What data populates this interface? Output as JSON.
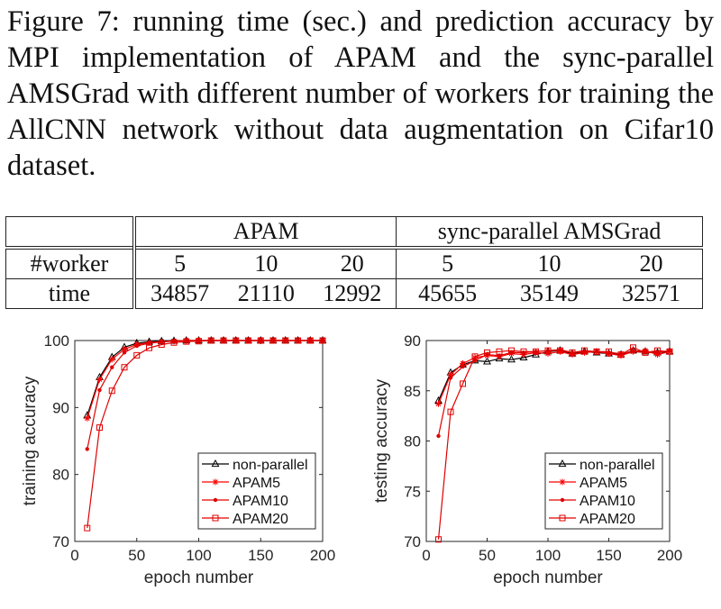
{
  "caption": "Figure 7: running time (sec.) and prediction accuracy by MPI implementation of APAM and the sync-parallel AMSGrad with different number of workers for training the AllCNN network without data augmentation on Cifar10 dataset.",
  "table": {
    "group_headers": [
      "APAM",
      "sync-parallel AMSGrad"
    ],
    "row_labels": [
      "#worker",
      "time"
    ],
    "workers": [
      "5",
      "10",
      "20",
      "5",
      "10",
      "20"
    ],
    "times": [
      "34857",
      "21110",
      "12992",
      "45655",
      "35149",
      "32571"
    ]
  },
  "chart_data": [
    {
      "type": "line",
      "xlabel": "epoch number",
      "ylabel": "training accuracy",
      "xlim": [
        0,
        200
      ],
      "ylim": [
        70,
        100
      ],
      "xticks": [
        0,
        50,
        100,
        150,
        200
      ],
      "yticks": [
        70,
        80,
        90,
        100
      ],
      "legend_position": "bottom-right",
      "x": [
        10,
        20,
        30,
        40,
        50,
        60,
        70,
        80,
        90,
        100,
        110,
        120,
        130,
        140,
        150,
        160,
        170,
        180,
        190,
        200
      ],
      "series": [
        {
          "name": "non-parallel",
          "color": "#000000",
          "marker": "triangle",
          "values": [
            88.8,
            94.5,
            97.5,
            99.0,
            99.6,
            99.8,
            99.9,
            99.95,
            100,
            100,
            100,
            100,
            100,
            100,
            100,
            100,
            100,
            100,
            100,
            100
          ]
        },
        {
          "name": "APAM5",
          "color": "#ff0000",
          "marker": "star",
          "values": [
            88.4,
            94.2,
            97.2,
            98.7,
            99.4,
            99.7,
            99.85,
            99.9,
            100,
            100,
            100,
            100,
            100,
            100,
            100,
            100,
            100,
            100,
            100,
            100
          ]
        },
        {
          "name": "APAM10",
          "color": "#e00000",
          "marker": "dot",
          "values": [
            83.8,
            92.6,
            96.0,
            98.2,
            99.2,
            99.6,
            99.8,
            99.9,
            100,
            100,
            100,
            100,
            100,
            100,
            100,
            100,
            100,
            100,
            100,
            100
          ]
        },
        {
          "name": "APAM20",
          "color": "#e00000",
          "marker": "square",
          "values": [
            72.0,
            87.0,
            92.5,
            96.0,
            97.8,
            98.9,
            99.4,
            99.7,
            99.85,
            99.9,
            100,
            100,
            100,
            100,
            100,
            100,
            100,
            100,
            100,
            100
          ]
        }
      ]
    },
    {
      "type": "line",
      "xlabel": "epoch number",
      "ylabel": "testing accuracy",
      "xlim": [
        0,
        200
      ],
      "ylim": [
        70,
        90
      ],
      "xticks": [
        0,
        50,
        100,
        150,
        200
      ],
      "yticks": [
        70,
        75,
        80,
        85,
        90
      ],
      "legend_position": "bottom-right",
      "x": [
        10,
        20,
        30,
        40,
        50,
        60,
        70,
        80,
        90,
        100,
        110,
        120,
        130,
        140,
        150,
        160,
        170,
        180,
        190,
        200
      ],
      "series": [
        {
          "name": "non-parallel",
          "color": "#000000",
          "marker": "triangle",
          "values": [
            84.0,
            86.8,
            87.6,
            88.0,
            87.9,
            88.2,
            88.1,
            88.3,
            88.6,
            88.9,
            89.0,
            88.7,
            88.9,
            88.8,
            88.7,
            88.6,
            89.0,
            88.9,
            88.8,
            88.9
          ]
        },
        {
          "name": "APAM5",
          "color": "#ff0000",
          "marker": "star",
          "values": [
            83.7,
            86.6,
            87.7,
            88.3,
            88.5,
            88.4,
            88.7,
            88.6,
            88.8,
            88.7,
            88.9,
            88.6,
            88.8,
            88.9,
            88.7,
            88.5,
            88.9,
            89.0,
            88.6,
            88.9
          ]
        },
        {
          "name": "APAM10",
          "color": "#e00000",
          "marker": "dot",
          "values": [
            80.5,
            86.3,
            87.4,
            88.0,
            88.6,
            88.5,
            88.8,
            88.8,
            88.9,
            89.0,
            89.1,
            88.8,
            88.9,
            88.9,
            88.8,
            88.7,
            88.9,
            88.8,
            88.8,
            89.0
          ]
        },
        {
          "name": "APAM20",
          "color": "#e00000",
          "marker": "square",
          "values": [
            70.2,
            82.9,
            85.7,
            88.4,
            88.8,
            88.9,
            89.0,
            88.9,
            88.9,
            89.0,
            89.0,
            88.8,
            89.0,
            88.9,
            88.9,
            88.6,
            89.3,
            88.8,
            89.0,
            88.9
          ]
        }
      ]
    }
  ]
}
